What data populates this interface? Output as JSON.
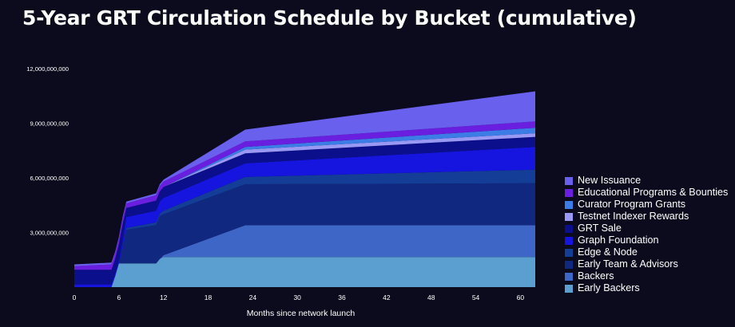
{
  "chart_data": {
    "type": "area",
    "stacked": true,
    "title": "5-Year GRT Circulation Schedule by Bucket (cumulative)",
    "xlabel": "Months since network launch",
    "ylabel": "",
    "xlim": [
      0,
      62
    ],
    "ylim": [
      0,
      12000000000
    ],
    "xticks": [
      0,
      6,
      12,
      18,
      24,
      30,
      36,
      42,
      48,
      54,
      60
    ],
    "xtick_labels": [
      "0",
      "6",
      "12",
      "18",
      "24",
      "30",
      "36",
      "42",
      "48",
      "54",
      "60"
    ],
    "yticks": [
      3000000000,
      6000000000,
      9000000000,
      12000000000
    ],
    "ytick_labels": [
      "3,000,000,000",
      "6,000,000,000",
      "9,000,000,000",
      "12,000,000,000"
    ],
    "grid": false,
    "legend_position": "right",
    "x": [
      0,
      5,
      5.5,
      6,
      6.5,
      7,
      11,
      11.5,
      12,
      23,
      62
    ],
    "series": [
      {
        "name": "Early Backers",
        "color": "#5b9fd0",
        "values": [
          0,
          0,
          600000000,
          1300000000,
          1300000000,
          1300000000,
          1300000000,
          1550000000,
          1650000000,
          1650000000,
          1650000000
        ]
      },
      {
        "name": "Backers",
        "color": "#3e66c6",
        "values": [
          0,
          0,
          0,
          0,
          0,
          0,
          0,
          0,
          100000000,
          1750000000,
          1750000000
        ]
      },
      {
        "name": "Early Team & Advisors",
        "color": "#10287f",
        "values": [
          0,
          0,
          0,
          0,
          900000000,
          1850000000,
          2100000000,
          2350000000,
          2250000000,
          2250000000,
          2300000000
        ]
      },
      {
        "name": "Edge & Node",
        "color": "#143d97",
        "values": [
          0,
          0,
          0,
          0,
          50000000,
          100000000,
          150000000,
          150000000,
          200000000,
          400000000,
          750000000
        ]
      },
      {
        "name": "Graph Foundation",
        "color": "#1515df",
        "values": [
          150000000,
          150000000,
          150000000,
          150000000,
          300000000,
          600000000,
          650000000,
          650000000,
          700000000,
          750000000,
          1250000000
        ]
      },
      {
        "name": "GRT Sale",
        "color": "#0b0f8c",
        "values": [
          800000000,
          800000000,
          800000000,
          900000000,
          900000000,
          500000000,
          550000000,
          550000000,
          600000000,
          550000000,
          550000000
        ]
      },
      {
        "name": "Testnet Indexer Rewards",
        "color": "#9999f5",
        "values": [
          0,
          0,
          0,
          0,
          0,
          0,
          0,
          0,
          0,
          200000000,
          200000000
        ]
      },
      {
        "name": "Curator Program Grants",
        "color": "#3c7ce6",
        "values": [
          0,
          0,
          0,
          0,
          0,
          0,
          0,
          0,
          0,
          150000000,
          300000000
        ]
      },
      {
        "name": "Educational Programs & Bounties",
        "color": "#6a1fe0",
        "values": [
          200000000,
          300000000,
          300000000,
          300000000,
          300000000,
          250000000,
          300000000,
          300000000,
          300000000,
          300000000,
          350000000
        ]
      },
      {
        "name": "New Issuance",
        "color": "#6960ee",
        "values": [
          100000000,
          100000000,
          100000000,
          100000000,
          100000000,
          100000000,
          100000000,
          100000000,
          100000000,
          650000000,
          1650000000
        ]
      }
    ]
  }
}
